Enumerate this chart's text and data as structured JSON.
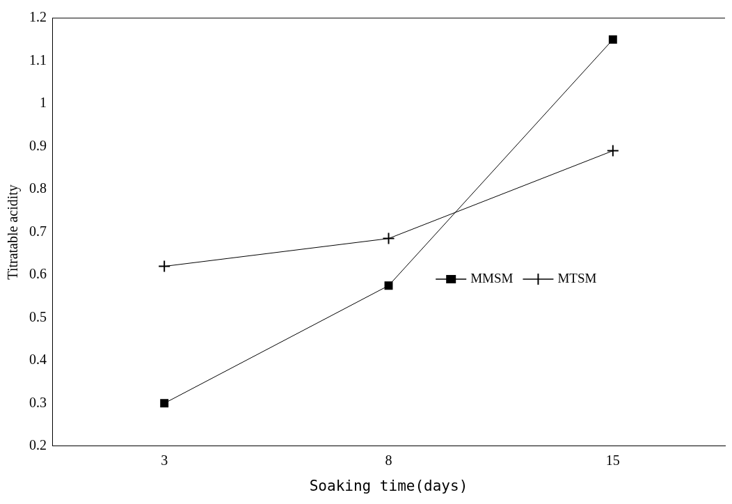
{
  "chart_data": {
    "type": "line",
    "xlabel": "Soaking time(days)",
    "ylabel": "Titratable acidity",
    "categories": [
      "3",
      "8",
      "15"
    ],
    "series": [
      {
        "name": "MMSM",
        "color": "#000000",
        "marker": "square",
        "values": [
          0.3,
          0.575,
          1.15
        ]
      },
      {
        "name": "MTSM",
        "color": "#000000",
        "marker": "cross",
        "values": [
          0.62,
          0.685,
          0.89
        ]
      }
    ],
    "ylim": [
      0.2,
      1.2
    ],
    "yticks": [
      0.2,
      0.3,
      0.4,
      0.5,
      0.6,
      0.7,
      0.8,
      0.9,
      1,
      1.1,
      1.2
    ],
    "grid": false,
    "legend": "right",
    "line_style": "solid"
  }
}
